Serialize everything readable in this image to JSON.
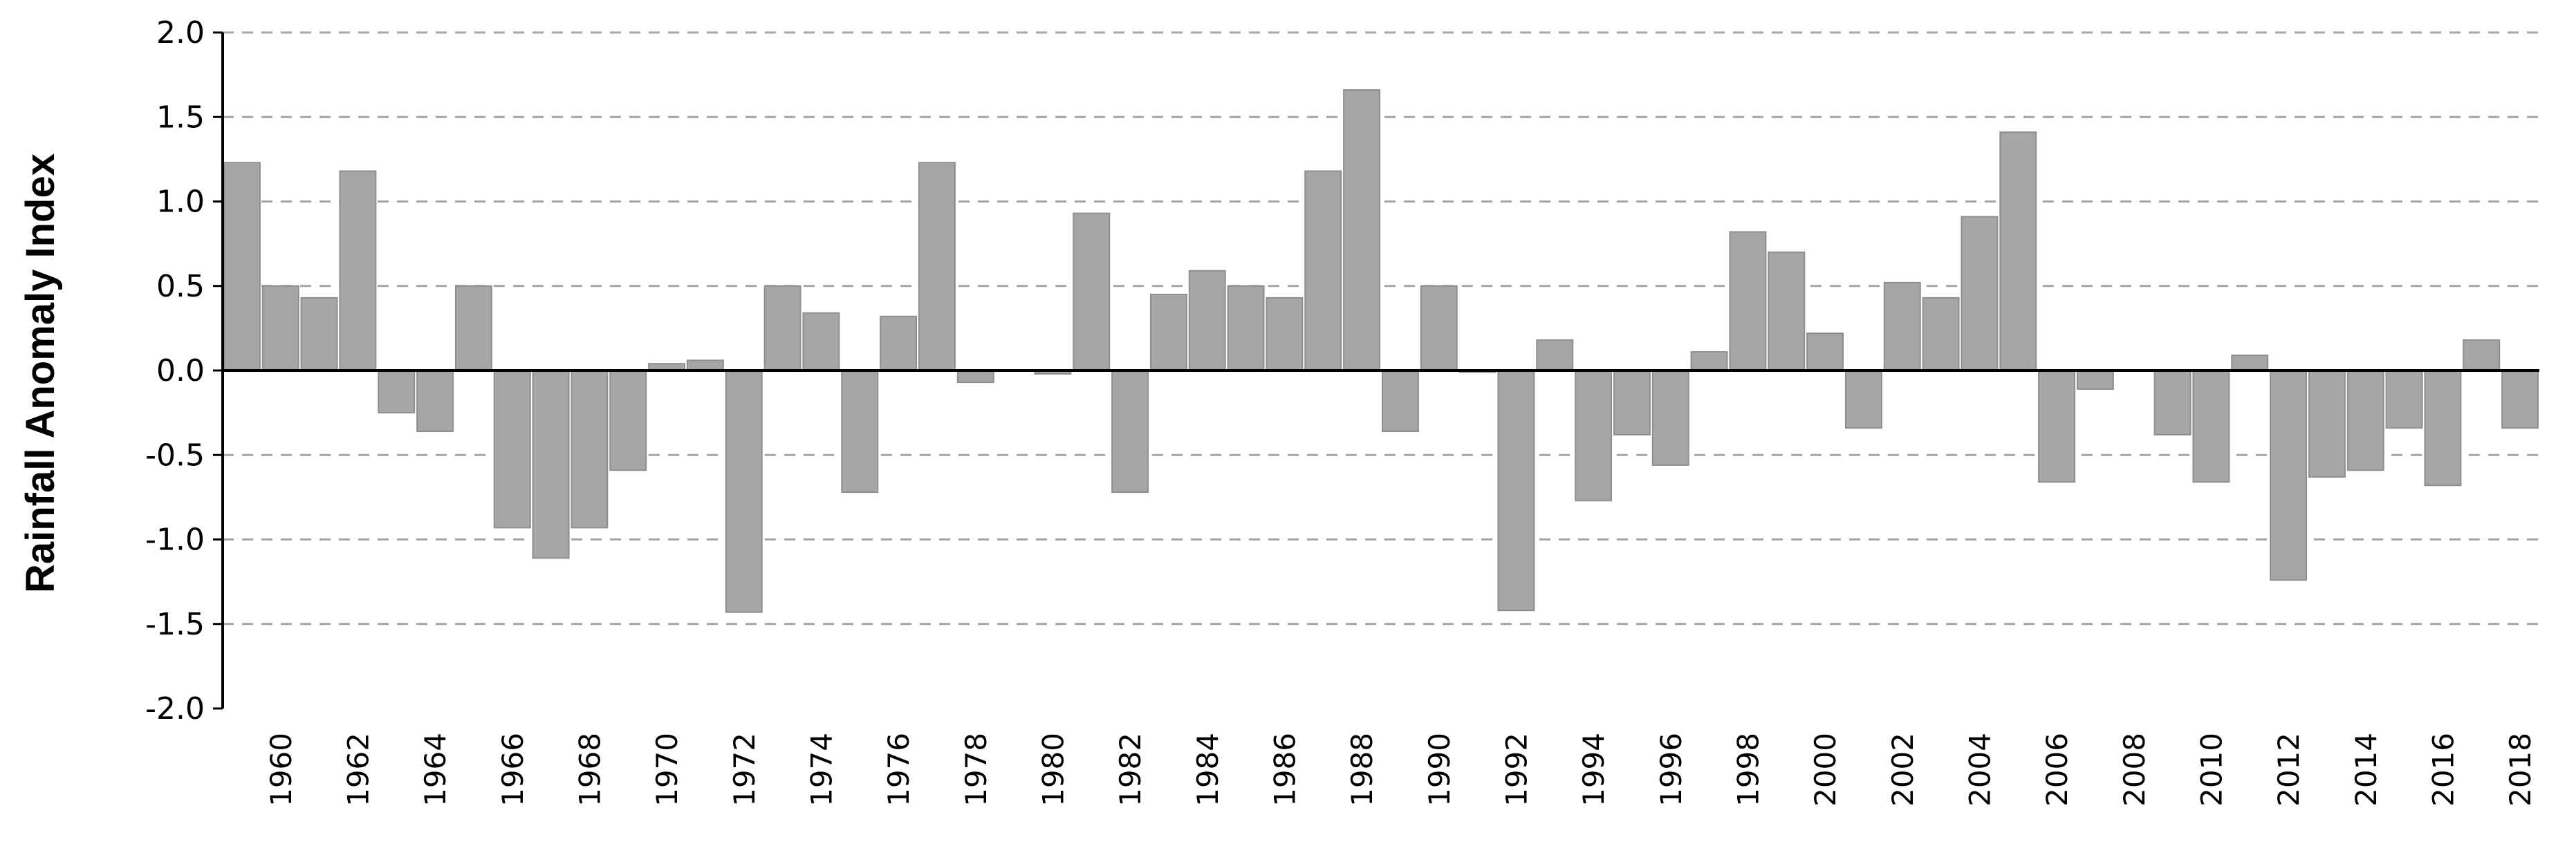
{
  "chart_data": {
    "type": "bar",
    "ylabel": "Rainfall Anomaly Index",
    "xlabel": "",
    "ylim": [
      -2.0,
      2.0
    ],
    "y_ticks": [
      "2.0",
      "1.5",
      "1.0",
      "0.5",
      "0.0",
      "-0.5",
      "-1.0",
      "-1.5",
      "-2.0"
    ],
    "y_tick_values": [
      2.0,
      1.5,
      1.0,
      0.5,
      0.0,
      -0.5,
      -1.0,
      -1.5,
      -2.0
    ],
    "grid": "horizontal-dashed",
    "bar_color": "#a6a6a6",
    "categories": [
      1959,
      1960,
      1961,
      1962,
      1963,
      1964,
      1965,
      1966,
      1967,
      1968,
      1969,
      1970,
      1971,
      1972,
      1973,
      1974,
      1975,
      1976,
      1977,
      1978,
      1979,
      1980,
      1981,
      1982,
      1983,
      1984,
      1985,
      1986,
      1987,
      1988,
      1989,
      1990,
      1991,
      1992,
      1993,
      1994,
      1995,
      1996,
      1997,
      1998,
      1999,
      2000,
      2001,
      2002,
      2003,
      2004,
      2005,
      2006,
      2007,
      2008,
      2009,
      2010,
      2011,
      2012,
      2013,
      2014,
      2015,
      2016,
      2017,
      2018
    ],
    "x_tick_labels": [
      "1960",
      "1962",
      "1964",
      "1966",
      "1968",
      "1970",
      "1972",
      "1974",
      "1976",
      "1978",
      "1980",
      "1982",
      "1984",
      "1986",
      "1988",
      "1990",
      "1992",
      "1994",
      "1996",
      "1998",
      "2000",
      "2002",
      "2004",
      "2006",
      "2008",
      "2010",
      "2012",
      "2014",
      "2016",
      "2018"
    ],
    "values": [
      1.23,
      0.5,
      0.43,
      1.18,
      -0.25,
      -0.36,
      0.5,
      -0.93,
      -1.11,
      -0.93,
      -0.59,
      0.04,
      0.06,
      -1.43,
      0.5,
      0.34,
      -0.72,
      0.32,
      1.23,
      -0.07,
      0.0,
      -0.02,
      0.93,
      -0.72,
      0.45,
      0.59,
      0.5,
      0.43,
      1.18,
      1.66,
      -0.36,
      0.5,
      -0.01,
      -1.42,
      0.18,
      -0.77,
      -0.38,
      -0.56,
      0.11,
      0.82,
      0.7,
      0.22,
      -0.34,
      0.52,
      0.43,
      0.91,
      1.41,
      -0.66,
      -0.11,
      0.0,
      -0.38,
      -0.66,
      0.09,
      -1.24,
      -0.63,
      -0.59,
      -0.34,
      -0.68,
      0.18,
      -0.34
    ]
  }
}
